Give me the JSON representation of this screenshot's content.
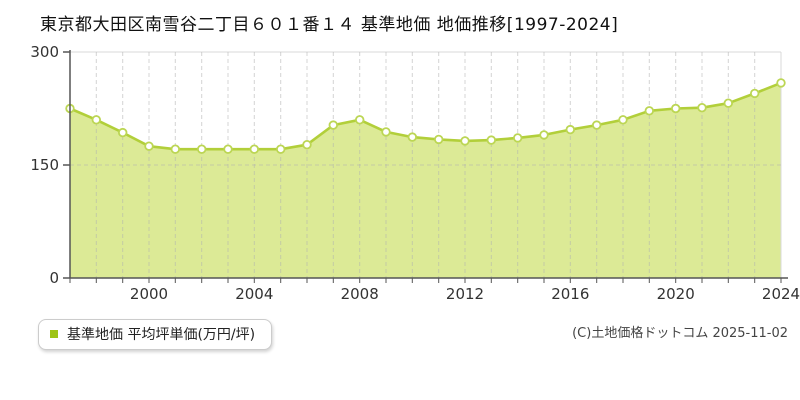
{
  "title": "東京都大田区南雪谷二丁目６０１番１４ 基準地価 地価推移[1997-2024]",
  "legend": {
    "label": "基準地価 平均坪単価(万円/坪)"
  },
  "copyright": "(C)土地価格ドットコム 2025-11-02",
  "colors": {
    "area_fill": "#dcea96",
    "line": "#b2cf3a",
    "marker_fill": "#ffffff",
    "marker_stroke": "#bcd654",
    "legend_marker": "#9ec417",
    "grid": "#b0b0b0",
    "axis": "#555555",
    "border": "#d9d9d9",
    "text": "#333333"
  },
  "chart_data": {
    "type": "area",
    "title": "東京都大田区南雪谷二丁目６０１番１４ 基準地価 地価推移[1997-2024]",
    "x": [
      1997,
      1998,
      1999,
      2000,
      2001,
      2002,
      2003,
      2004,
      2005,
      2006,
      2007,
      2008,
      2009,
      2010,
      2011,
      2012,
      2013,
      2014,
      2015,
      2016,
      2017,
      2018,
      2019,
      2020,
      2021,
      2022,
      2023,
      2024
    ],
    "series": [
      {
        "name": "基準地価 平均坪単価(万円/坪)",
        "values": [
          225,
          210,
          193,
          175,
          171,
          171,
          171,
          171,
          171,
          177,
          203,
          210,
          194,
          187,
          184,
          182,
          183,
          186,
          190,
          197,
          203,
          210,
          222,
          225,
          226,
          232,
          245,
          259
        ]
      }
    ],
    "ylabel": "万円/坪",
    "ylim": [
      0,
      300
    ],
    "yticks": [
      0,
      150,
      300
    ],
    "xticks": [
      2000,
      2004,
      2008,
      2012,
      2016,
      2020,
      2024
    ],
    "grid": true,
    "legend_position": "bottom-left"
  }
}
